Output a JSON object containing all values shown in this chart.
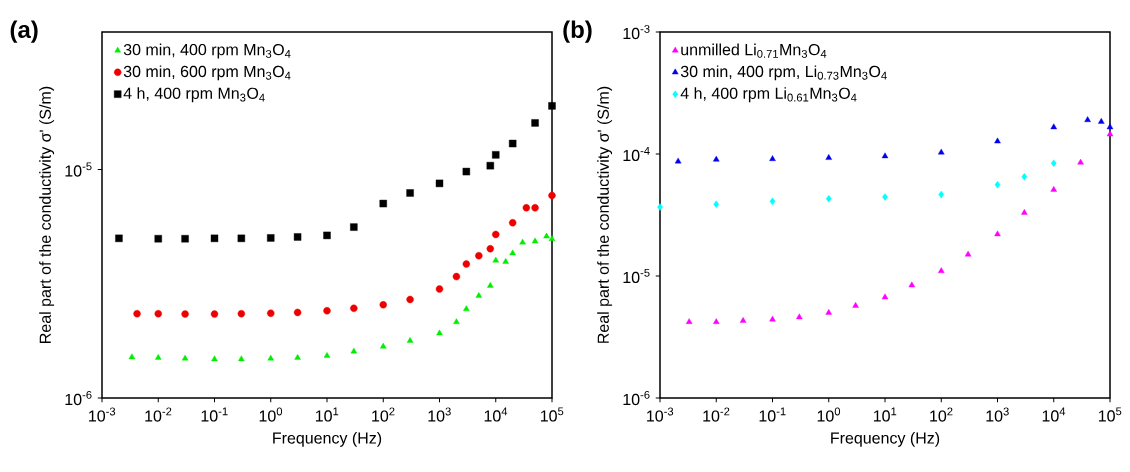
{
  "chart_data": [
    {
      "type": "scatter",
      "title": "(a)",
      "xlabel": "Frequency (Hz)",
      "ylabel": "Real part of the conductivity σ' (S/m)",
      "log": "xy",
      "legend": "top left",
      "grid": false,
      "xlim": [
        0.001,
        100000
      ],
      "ylim": [
        1e-06,
        4e-05
      ],
      "xticks": [
        {
          "value": 0.001,
          "label": "10$^{-3}$"
        },
        {
          "value": 0.01,
          "label": "10$^{-2}$"
        },
        {
          "value": 0.1,
          "label": "10$^{-1}$"
        },
        {
          "value": 1,
          "label": "10$^{0}$"
        },
        {
          "value": 10,
          "label": "10$^{1}$"
        },
        {
          "value": 100,
          "label": "10$^{2}$"
        },
        {
          "value": 1000,
          "label": "10$^{3}$"
        },
        {
          "value": 10000,
          "label": "10$^{4}$"
        },
        {
          "value": 100000,
          "label": "10$^{5}$"
        }
      ],
      "yticks": [
        {
          "value": 1e-06,
          "label": "10$^{-6}$"
        },
        {
          "value": 1e-05,
          "label": "10$^{-5}$"
        }
      ],
      "series": [
        {
          "name": "30 min, 400 rpm Mn$_{3}$O$_{4}$",
          "color": "#00ee00",
          "marker": "triangle",
          "x": [
            0.0034,
            0.01,
            0.03,
            0.1,
            0.3,
            1,
            3,
            10,
            30,
            100,
            300,
            1000,
            2000,
            3000,
            5000,
            8000,
            10000,
            15000,
            20000,
            30000,
            50000,
            80000,
            100000
          ],
          "values": [
            1.51e-06,
            1.5e-06,
            1.49e-06,
            1.48e-06,
            1.48e-06,
            1.49e-06,
            1.5e-06,
            1.53e-06,
            1.6e-06,
            1.68e-06,
            1.78e-06,
            1.92e-06,
            2.15e-06,
            2.45e-06,
            2.8e-06,
            3.1e-06,
            4e-06,
            3.95e-06,
            4.3e-06,
            4.8e-06,
            4.85e-06,
            5.1e-06,
            4.97e-06
          ]
        },
        {
          "name": "30 min, 600 rpm Mn$_{3}$O$_{4}$",
          "color": "#ee0000",
          "marker": "circle",
          "x": [
            0.0042,
            0.01,
            0.03,
            0.1,
            0.3,
            1,
            3,
            10,
            30,
            100,
            300,
            1000,
            2000,
            3000,
            5000,
            8000,
            10000,
            20000,
            35000,
            50000,
            100000
          ],
          "values": [
            2.34e-06,
            2.34e-06,
            2.33e-06,
            2.33e-06,
            2.34e-06,
            2.35e-06,
            2.37e-06,
            2.41e-06,
            2.47e-06,
            2.56e-06,
            2.7e-06,
            3e-06,
            3.4e-06,
            3.86e-06,
            4.2e-06,
            4.5e-06,
            5.2e-06,
            5.85e-06,
            6.8e-06,
            6.8e-06,
            7.7e-06
          ]
        },
        {
          "name": "4 h, 400 rpm Mn$_{3}$O$_{4}$",
          "color": "#000000",
          "marker": "square",
          "x": [
            0.002,
            0.01,
            0.03,
            0.1,
            0.3,
            1,
            3,
            10,
            30,
            100,
            300,
            1000,
            3000,
            8000,
            10000,
            20000,
            50000,
            100000
          ],
          "values": [
            5e-06,
            4.98e-06,
            4.98e-06,
            5e-06,
            5e-06,
            5.02e-06,
            5.07e-06,
            5.15e-06,
            5.6e-06,
            7.1e-06,
            7.9e-06,
            8.7e-06,
            9.8e-06,
            1.04e-05,
            1.16e-05,
            1.3e-05,
            1.6e-05,
            1.9e-05
          ]
        }
      ]
    },
    {
      "type": "scatter",
      "title": "(b)",
      "xlabel": "Frequency (Hz)",
      "ylabel": "Real part of the conductivity σ' (S/m)",
      "log": "xy",
      "legend": "top left",
      "grid": false,
      "xlim": [
        0.001,
        100000
      ],
      "ylim": [
        1e-06,
        0.001
      ],
      "xticks": [
        {
          "value": 0.001,
          "label": "10$^{-3}$"
        },
        {
          "value": 0.01,
          "label": "10$^{-2}$"
        },
        {
          "value": 0.1,
          "label": "10$^{-1}$"
        },
        {
          "value": 1,
          "label": "10$^{0}$"
        },
        {
          "value": 10,
          "label": "10$^{1}$"
        },
        {
          "value": 100,
          "label": "10$^{2}$"
        },
        {
          "value": 1000,
          "label": "10$^{3}$"
        },
        {
          "value": 10000,
          "label": "10$^{4}$"
        },
        {
          "value": 100000,
          "label": "10$^{5}$"
        }
      ],
      "yticks": [
        {
          "value": 1e-06,
          "label": "10$^{-6}$"
        },
        {
          "value": 1e-05,
          "label": "10$^{-5}$"
        },
        {
          "value": 0.0001,
          "label": "10$^{-4}$"
        },
        {
          "value": 0.001,
          "label": "10$^{-3}$"
        }
      ],
      "series": [
        {
          "name": "unmilled Li$_{0.71}$Mn$_{3}$O$_{4}$",
          "color": "#ff00ff",
          "marker": "triangle",
          "x": [
            0.0033,
            0.01,
            0.03,
            0.1,
            0.3,
            1,
            3,
            10,
            30,
            100,
            300,
            1000,
            3000,
            10000,
            30000,
            100000
          ],
          "values": [
            4.2e-06,
            4.2e-06,
            4.3e-06,
            4.4e-06,
            4.6e-06,
            5e-06,
            5.7e-06,
            6.7e-06,
            8.4e-06,
            1.1e-05,
            1.5e-05,
            2.2e-05,
            3.3e-05,
            5.1e-05,
            8.5e-05,
            0.000145
          ]
        },
        {
          "name": "30 min, 400 rpm, Li$_{0.73}$Mn$_{3}$O$_{4}$",
          "color": "#0000ee",
          "marker": "triangle",
          "x": [
            0.0021,
            0.01,
            0.1,
            1,
            10,
            100,
            1000,
            10000,
            40000,
            70000,
            100000
          ],
          "values": [
            8.7e-05,
            9e-05,
            9.1e-05,
            9.3e-05,
            9.6e-05,
            0.000103,
            0.000127,
            0.000166,
            0.00019,
            0.000184,
            0.000166
          ]
        },
        {
          "name": "4 h, 400 rpm Li$_{0.61}$Mn$_{3}$O$_{4}$",
          "color": "#00ffff",
          "marker": "diamond",
          "x": [
            0.001,
            0.01,
            0.1,
            1,
            10,
            100,
            1000,
            3000,
            10000
          ],
          "values": [
            3.67e-05,
            3.87e-05,
            4.1e-05,
            4.3e-05,
            4.45e-05,
            4.65e-05,
            5.6e-05,
            6.5e-05,
            8.4e-05
          ]
        }
      ]
    }
  ]
}
